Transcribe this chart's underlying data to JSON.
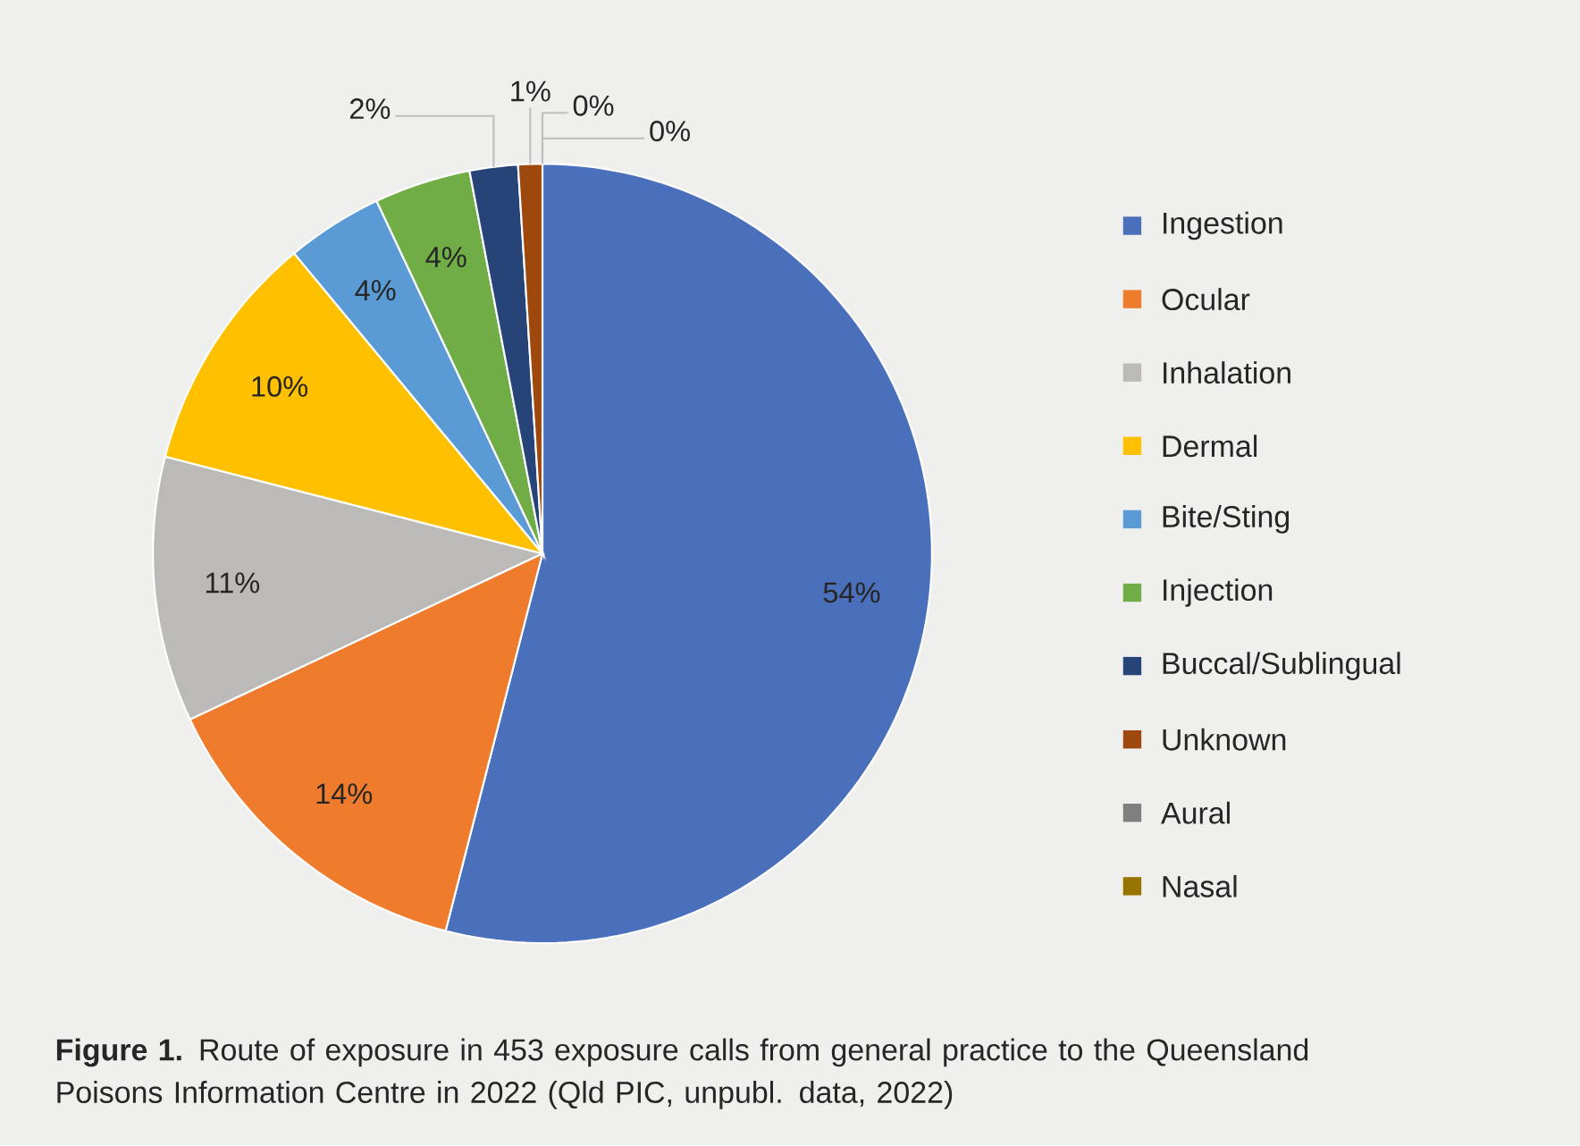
{
  "chart_data": {
    "type": "pie",
    "categories": [
      "Ingestion",
      "Ocular",
      "Inhalation",
      "Dermal",
      "Bite/Sting",
      "Injection",
      "Buccal/Sublingual",
      "Unknown",
      "Aural",
      "Nasal"
    ],
    "values": [
      54,
      14,
      11,
      10,
      4,
      4,
      2,
      1,
      0,
      0
    ],
    "colors": [
      "#4a6fbb",
      "#ef7b2c",
      "#bcbab8",
      "#ffc000",
      "#5b9bd5",
      "#70ad47",
      "#264478",
      "#9e480e",
      "#7f7f7f",
      "#997300"
    ],
    "value_labels": [
      "54%",
      "14%",
      "11%",
      "10%",
      "4%",
      "4%",
      "2%",
      "1%",
      "0%",
      "0%"
    ],
    "legend": "right",
    "annotations": [
      "**Figure 1.** Route of exposure in 453 exposure calls from general practice to the Queensland Poisons Information Centre in 2022 (Qld PIC, unpubl. data, 2022)"
    ]
  }
}
